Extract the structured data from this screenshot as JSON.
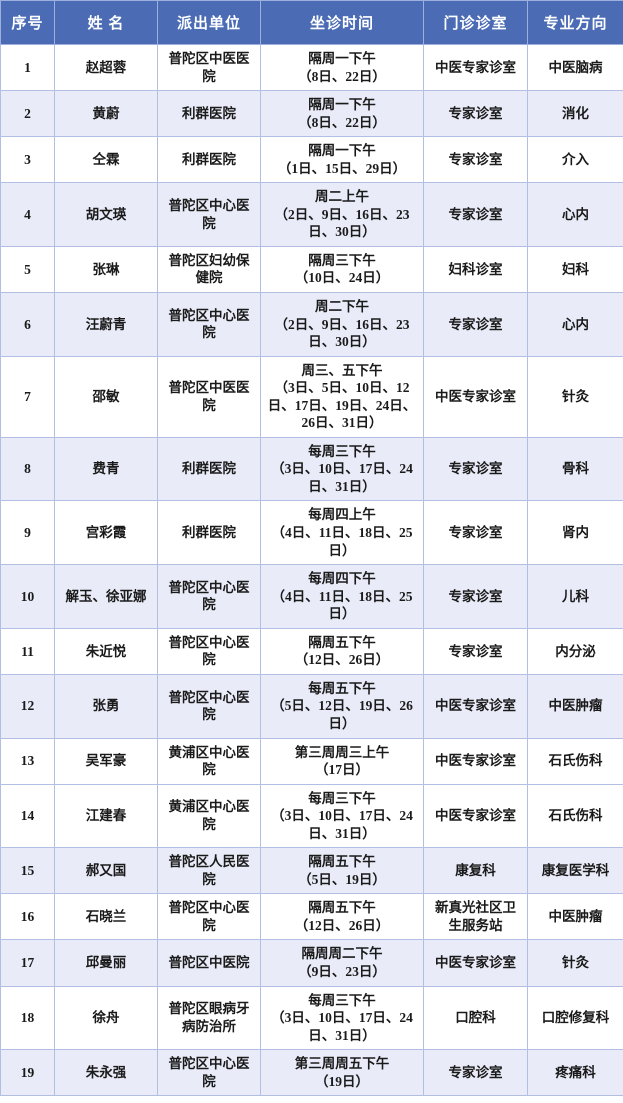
{
  "colors": {
    "header_bg": "#4b6cb4",
    "header_text": "#ffffff",
    "row_shaded_bg": "#e9ecf8",
    "border": "#b3bfe2",
    "text": "#1a1a1a"
  },
  "table": {
    "columns": [
      "序号",
      "姓 名",
      "派出单位",
      "坐诊时间",
      "门诊诊室",
      "专业方向"
    ],
    "rows": [
      {
        "seq": "1",
        "name": "赵超蓉",
        "unit": "普陀区中医医院",
        "schedule": "隔周一下午",
        "dates": "（8日、22日）",
        "room": "中医专家诊室",
        "specialty": "中医脑病",
        "shaded": false
      },
      {
        "seq": "2",
        "name": "黄蔚",
        "unit": "利群医院",
        "schedule": "隔周一下午",
        "dates": "（8日、22日）",
        "room": "专家诊室",
        "specialty": "消化",
        "shaded": true
      },
      {
        "seq": "3",
        "name": "仝霖",
        "unit": "利群医院",
        "schedule": "隔周一下午",
        "dates": "（1日、15日、29日）",
        "room": "专家诊室",
        "specialty": "介入",
        "shaded": false
      },
      {
        "seq": "4",
        "name": "胡文瑛",
        "unit": "普陀区中心医院",
        "schedule": "周二上午",
        "dates": "（2日、9日、16日、23日、30日）",
        "room": "专家诊室",
        "specialty": "心内",
        "shaded": true
      },
      {
        "seq": "5",
        "name": "张琳",
        "unit": "普陀区妇幼保健院",
        "schedule": "隔周三下午",
        "dates": "（10日、24日）",
        "room": "妇科诊室",
        "specialty": "妇科",
        "shaded": false
      },
      {
        "seq": "6",
        "name": "汪蔚青",
        "unit": "普陀区中心医院",
        "schedule": "周二下午",
        "dates": "（2日、9日、16日、23日、30日）",
        "room": "专家诊室",
        "specialty": "心内",
        "shaded": true
      },
      {
        "seq": "7",
        "name": "邵敏",
        "unit": "普陀区中医医院",
        "schedule": "周三、五下午",
        "dates": "（3日、5日、10日、12日、17日、19日、24日、26日、31日）",
        "room": "中医专家诊室",
        "specialty": "针灸",
        "shaded": false
      },
      {
        "seq": "8",
        "name": "费青",
        "unit": "利群医院",
        "schedule": "每周三下午",
        "dates": "（3日、10日、17日、24日、31日）",
        "room": "专家诊室",
        "specialty": "骨科",
        "shaded": true
      },
      {
        "seq": "9",
        "name": "宫彩霞",
        "unit": "利群医院",
        "schedule": "每周四上午",
        "dates": "（4日、11日、18日、25日）",
        "room": "专家诊室",
        "specialty": "肾内",
        "shaded": false
      },
      {
        "seq": "10",
        "name": "解玉、徐亚娜",
        "unit": "普陀区中心医院",
        "schedule": "每周四下午",
        "dates": "（4日、11日、18日、25日）",
        "room": "专家诊室",
        "specialty": "儿科",
        "shaded": true
      },
      {
        "seq": "11",
        "name": "朱近悦",
        "unit": "普陀区中心医院",
        "schedule": "隔周五下午",
        "dates": "（12日、26日）",
        "room": "专家诊室",
        "specialty": "内分泌",
        "shaded": false
      },
      {
        "seq": "12",
        "name": "张勇",
        "unit": "普陀区中心医院",
        "schedule": "每周五下午",
        "dates": "（5日、12日、19日、26日）",
        "room": "中医专家诊室",
        "specialty": "中医肿瘤",
        "shaded": true
      },
      {
        "seq": "13",
        "name": "吴军豪",
        "unit": "黄浦区中心医院",
        "schedule": "第三周周三上午",
        "dates": "（17日）",
        "room": "中医专家诊室",
        "specialty": "石氏伤科",
        "shaded": false
      },
      {
        "seq": "14",
        "name": "江建春",
        "unit": "黄浦区中心医院",
        "schedule": "每周三下午",
        "dates": "（3日、10日、17日、24日、31日）",
        "room": "中医专家诊室",
        "specialty": "石氏伤科",
        "shaded": false
      },
      {
        "seq": "15",
        "name": "郝又国",
        "unit": "普陀区人民医院",
        "schedule": "隔周五下午",
        "dates": "（5日、19日）",
        "room": "康复科",
        "specialty": "康复医学科",
        "shaded": true
      },
      {
        "seq": "16",
        "name": "石晓兰",
        "unit": "普陀区中心医院",
        "schedule": "隔周五下午",
        "dates": "（12日、26日）",
        "room": "新真光社区卫生服务站",
        "specialty": "中医肿瘤",
        "shaded": false
      },
      {
        "seq": "17",
        "name": "邱曼丽",
        "unit": "普陀区中医院",
        "schedule": "隔周周二下午",
        "dates": "（9日、23日）",
        "room": "中医专家诊室",
        "specialty": "针灸",
        "shaded": true
      },
      {
        "seq": "18",
        "name": "徐舟",
        "unit": "普陀区眼病牙病防治所",
        "schedule": "每周三下午",
        "dates": "（3日、10日、17日、24日、31日）",
        "room": "口腔科",
        "specialty": "口腔修复科",
        "shaded": false
      },
      {
        "seq": "19",
        "name": "朱永强",
        "unit": "普陀区中心医院",
        "schedule": "第三周周五下午",
        "dates": "（19日）",
        "room": "专家诊室",
        "specialty": "疼痛科",
        "shaded": true
      }
    ]
  }
}
